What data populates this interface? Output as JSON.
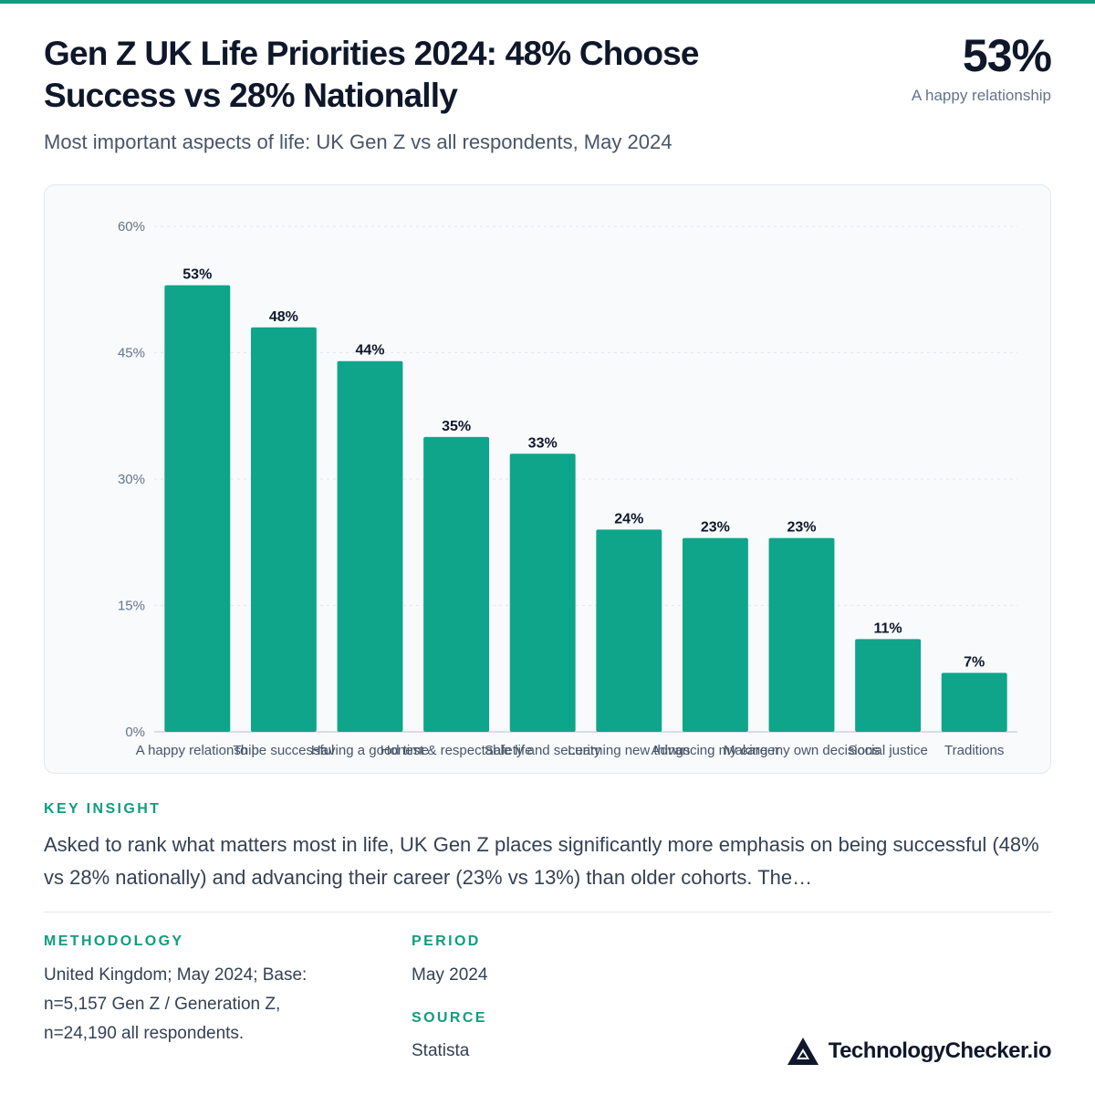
{
  "header": {
    "title": "Gen Z UK Life Priorities 2024: 48% Choose Success vs 28% Nationally",
    "subtitle": "Most important aspects of life: UK Gen Z vs all respondents, May 2024",
    "highlight_value": "53%",
    "highlight_label": "A happy relationship"
  },
  "chart_data": {
    "type": "bar",
    "categories": [
      "A happy relationship",
      "To be successful",
      "Having a good time",
      "Honest & respectable life",
      "Safety and security",
      "Learning new things",
      "Advancing my career",
      "Making my own decisions",
      "Social justice",
      "Traditions"
    ],
    "values": [
      53,
      48,
      44,
      35,
      33,
      24,
      23,
      23,
      11,
      7
    ],
    "value_labels": [
      "53%",
      "48%",
      "44%",
      "35%",
      "33%",
      "24%",
      "23%",
      "23%",
      "11%",
      "7%"
    ],
    "ylim": [
      0,
      60
    ],
    "yticks": [
      0,
      15,
      30,
      45,
      60
    ],
    "ytick_labels": [
      "0%",
      "15%",
      "30%",
      "45%",
      "60%"
    ],
    "grid": true,
    "bar_color": "#0ea58a",
    "label_color": "#0f172a"
  },
  "insight": {
    "label": "KEY INSIGHT",
    "text": "Asked to rank what matters most in life, UK Gen Z places significantly more emphasis on being successful (48% vs 28% nationally) and advancing their career (23% vs 13%) than older cohorts. The…"
  },
  "methodology": {
    "label": "METHODOLOGY",
    "lines": [
      "United Kingdom; May 2024; Base:",
      "n=5,157 Gen Z / Generation Z,",
      "n=24,190 all respondents."
    ]
  },
  "period": {
    "label": "PERIOD",
    "value": "May 2024"
  },
  "source": {
    "label": "SOURCE",
    "value": "Statista"
  },
  "brand": {
    "name": "TechnologyChecker.io"
  },
  "colors": {
    "accent": "#0f9d7e",
    "bar": "#0ea58a",
    "text": "#0f172a",
    "muted": "#64748b"
  }
}
